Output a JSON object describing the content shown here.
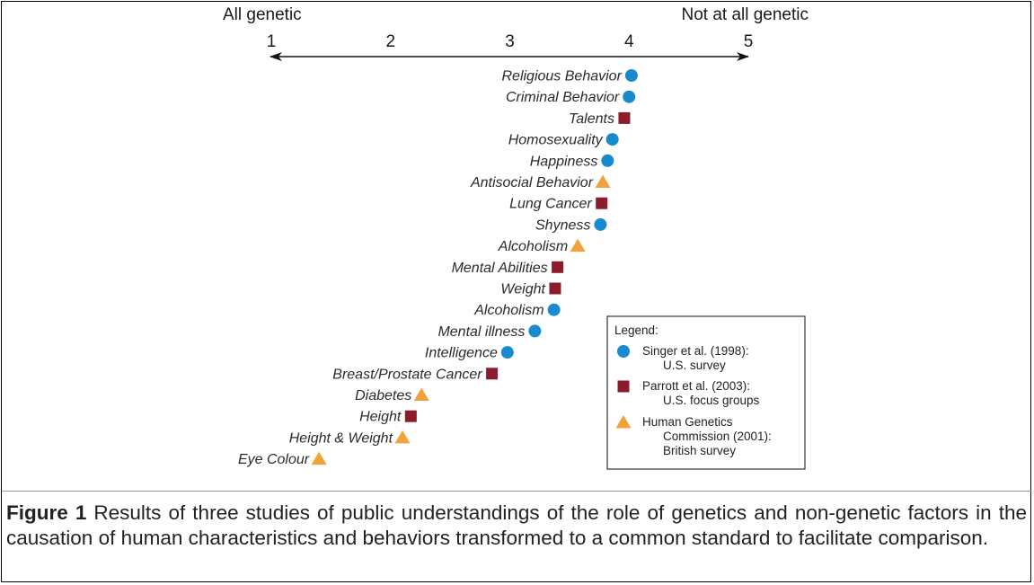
{
  "chart_data": {
    "type": "scatter",
    "axis": {
      "left_label": "All genetic",
      "right_label": "Not at all genetic",
      "ticks": [
        1,
        2,
        3,
        4,
        5
      ],
      "xlim": [
        1,
        5
      ]
    },
    "legend": {
      "title": "Legend:",
      "placement": "bottom-right",
      "entries": [
        {
          "key": "singer",
          "lines": [
            "Singer et al. (1998):",
            "U.S. survey"
          ]
        },
        {
          "key": "parrott",
          "lines": [
            "Parrott et al. (2003):",
            "U.S. focus groups"
          ]
        },
        {
          "key": "hgc",
          "lines": [
            "Human Genetics",
            "Commission (2001):",
            "British survey"
          ]
        }
      ]
    },
    "marker_styles": {
      "singer": {
        "shape": "circle",
        "color": "#1a8ad0"
      },
      "parrott": {
        "shape": "square",
        "color": "#8c1c2c"
      },
      "hgc": {
        "shape": "triangle",
        "color": "#f2a23a"
      }
    },
    "items": [
      {
        "label": "Religious Behavior",
        "value": 4.02,
        "study": "singer"
      },
      {
        "label": "Criminal Behavior",
        "value": 4.0,
        "study": "singer"
      },
      {
        "label": "Talents",
        "value": 3.96,
        "study": "parrott"
      },
      {
        "label": "Homosexuality",
        "value": 3.86,
        "study": "singer"
      },
      {
        "label": "Happiness",
        "value": 3.82,
        "study": "singer"
      },
      {
        "label": "Antisocial Behavior",
        "value": 3.78,
        "study": "hgc"
      },
      {
        "label": "Lung Cancer",
        "value": 3.77,
        "study": "parrott"
      },
      {
        "label": "Shyness",
        "value": 3.76,
        "study": "singer"
      },
      {
        "label": "Alcoholism",
        "value": 3.57,
        "study": "hgc"
      },
      {
        "label": "Mental Abilities",
        "value": 3.4,
        "study": "parrott"
      },
      {
        "label": "Weight",
        "value": 3.38,
        "study": "parrott"
      },
      {
        "label": "Alcoholism",
        "value": 3.37,
        "study": "singer"
      },
      {
        "label": "Mental illness",
        "value": 3.21,
        "study": "singer"
      },
      {
        "label": "Intelligence",
        "value": 2.98,
        "study": "singer"
      },
      {
        "label": "Breast/Prostate Cancer",
        "value": 2.85,
        "study": "parrott"
      },
      {
        "label": "Diabetes",
        "value": 2.26,
        "study": "hgc"
      },
      {
        "label": "Height",
        "value": 2.17,
        "study": "parrott"
      },
      {
        "label": "Height & Weight",
        "value": 2.1,
        "study": "hgc"
      },
      {
        "label": "Eye Colour",
        "value": 1.4,
        "study": "hgc"
      }
    ]
  },
  "caption": {
    "label": "Figure 1",
    "text": "Results of three studies of public understandings of the role of genetics and non-genetic factors in the causation of human characteristics and behaviors transformed to a common standard to facilitate comparison."
  }
}
